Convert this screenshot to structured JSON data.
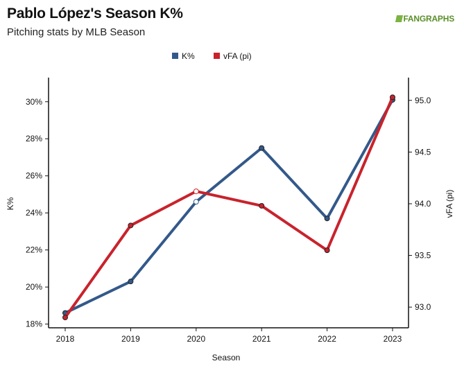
{
  "header": {
    "title": "Pablo López's Season K%",
    "subtitle": "Pitching stats by MLB Season",
    "logo_text": "FANGRAPHS"
  },
  "chart_data": {
    "type": "line",
    "title": "Pablo López's Season K%",
    "subtitle": "Pitching stats by MLB Season",
    "xlabel": "Season",
    "ylabel_left": "K%",
    "ylabel_right": "vFA (pi)",
    "categories": [
      "2018",
      "2019",
      "2020",
      "2021",
      "2022",
      "2023"
    ],
    "left_axis": {
      "min": 17.8,
      "max": 31.3,
      "ticks": [
        18,
        20,
        22,
        24,
        26,
        28,
        30
      ],
      "tick_labels": [
        "18%",
        "20%",
        "22%",
        "24%",
        "26%",
        "28%",
        "30%"
      ]
    },
    "right_axis": {
      "min": 92.8,
      "max": 95.22,
      "ticks": [
        93.0,
        93.5,
        94.0,
        94.5,
        95.0
      ],
      "tick_labels": [
        "93.0",
        "93.5",
        "94.0",
        "94.5",
        "95.0"
      ]
    },
    "series": [
      {
        "name": "K%",
        "axis": "left",
        "color": "#33598a",
        "values": [
          18.6,
          20.3,
          24.6,
          27.5,
          23.7,
          30.1
        ]
      },
      {
        "name": "vFA (pi)",
        "axis": "right",
        "color": "#c8232c",
        "values": [
          92.9,
          93.79,
          94.12,
          93.98,
          93.55,
          95.03
        ]
      }
    ],
    "legend_position": "top-center",
    "grid": false
  }
}
